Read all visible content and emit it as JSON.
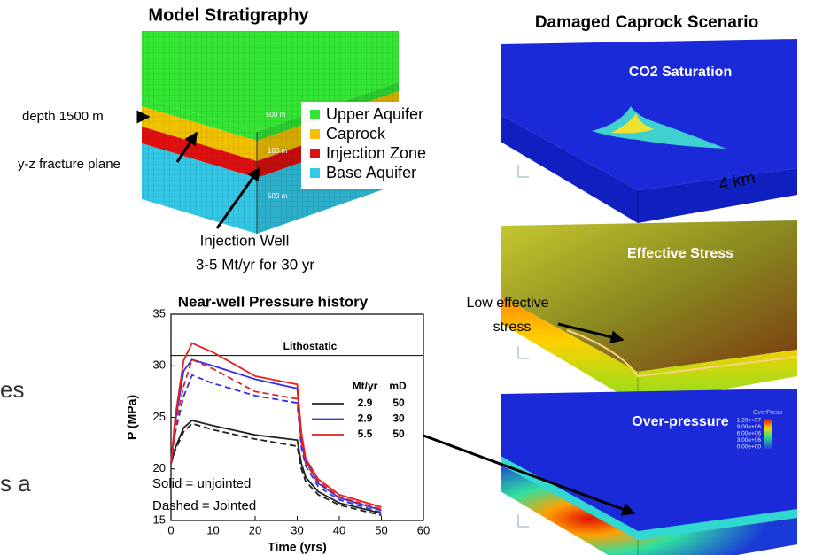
{
  "slide_fragments": [
    "es",
    "s a"
  ],
  "model_stratigraphy": {
    "title": "Model Stratigraphy",
    "labels": {
      "depth": "depth 1500 m",
      "fracture": "y-z fracture plane",
      "well": "Injection Well",
      "rate": "3-5 Mt/yr for 30 yr"
    },
    "dimensions": [
      "500 m",
      "100 m",
      "500 m"
    ],
    "legend": [
      {
        "name": "Upper Aquifer",
        "color": "#33e633"
      },
      {
        "name": "Caprock",
        "color": "#f2c200"
      },
      {
        "name": "Injection Zone",
        "color": "#e01010"
      },
      {
        "name": "Base Aquifer",
        "color": "#33c8e6"
      }
    ]
  },
  "damaged_caprock": {
    "title": "Damaged Caprock Scenario",
    "panels": [
      "CO2 Saturation",
      "Effective Stress",
      "Over-pressure"
    ],
    "scale": "4 km",
    "annotation": [
      "Low effective",
      "stress"
    ],
    "colorbar": {
      "title": "OverPress",
      "labels": [
        "1.20e+07",
        "9.00e+06",
        "6.00e+06",
        "3.00e+06",
        "0.00e+00"
      ]
    }
  },
  "chart_data": {
    "type": "line",
    "title": "Near-well Pressure history",
    "xlabel": "Time (yrs)",
    "ylabel": "P (MPa)",
    "x": [
      0,
      1,
      3,
      5,
      10,
      20,
      30,
      31,
      32,
      35,
      40,
      50
    ],
    "series": [
      {
        "color": "#222222",
        "dashed": false,
        "values": [
          20.5,
          22,
          24,
          24.7,
          24.2,
          23.3,
          22.8,
          20.5,
          19.2,
          17.8,
          16.7,
          15.7
        ]
      },
      {
        "color": "#222222",
        "dashed": true,
        "values": [
          20.5,
          21.8,
          23.6,
          24.4,
          23.8,
          22.9,
          22.2,
          20,
          18.8,
          17.5,
          16.5,
          15.5
        ]
      },
      {
        "color": "#3333dd",
        "dashed": false,
        "values": [
          20.5,
          24.5,
          29.5,
          30.6,
          30,
          28.7,
          27.8,
          22.8,
          20.8,
          18.6,
          17.2,
          16
        ]
      },
      {
        "color": "#3333dd",
        "dashed": true,
        "values": [
          20.5,
          23.5,
          27,
          29.1,
          28.3,
          27.1,
          26.4,
          22,
          20.3,
          18.3,
          17,
          15.8
        ]
      },
      {
        "color": "#e82020",
        "dashed": false,
        "values": [
          20.5,
          25,
          30.5,
          32.2,
          31.3,
          29,
          28.2,
          23.5,
          21,
          19,
          17.5,
          16.3
        ]
      },
      {
        "color": "#e82020",
        "dashed": true,
        "values": [
          20.5,
          24,
          28,
          30.6,
          29.7,
          27.5,
          26.8,
          22.5,
          20.5,
          18.8,
          17.3,
          16.1
        ]
      }
    ],
    "xlim": [
      0,
      60
    ],
    "ylim": [
      15,
      35
    ],
    "xticks": [
      0,
      10,
      20,
      30,
      40,
      50,
      60
    ],
    "yticks": [
      15,
      20,
      25,
      30,
      35
    ],
    "reference_line": {
      "value": 31,
      "label": "Lithostatic"
    },
    "legend": {
      "columns": [
        "Mt/yr",
        "mD"
      ],
      "rows": [
        [
          "2.9",
          "50"
        ],
        [
          "2.9",
          "30"
        ],
        [
          "5.5",
          "50"
        ]
      ]
    },
    "annotations": [
      "Solid = unjointed",
      "Dashed = Jointed"
    ]
  }
}
